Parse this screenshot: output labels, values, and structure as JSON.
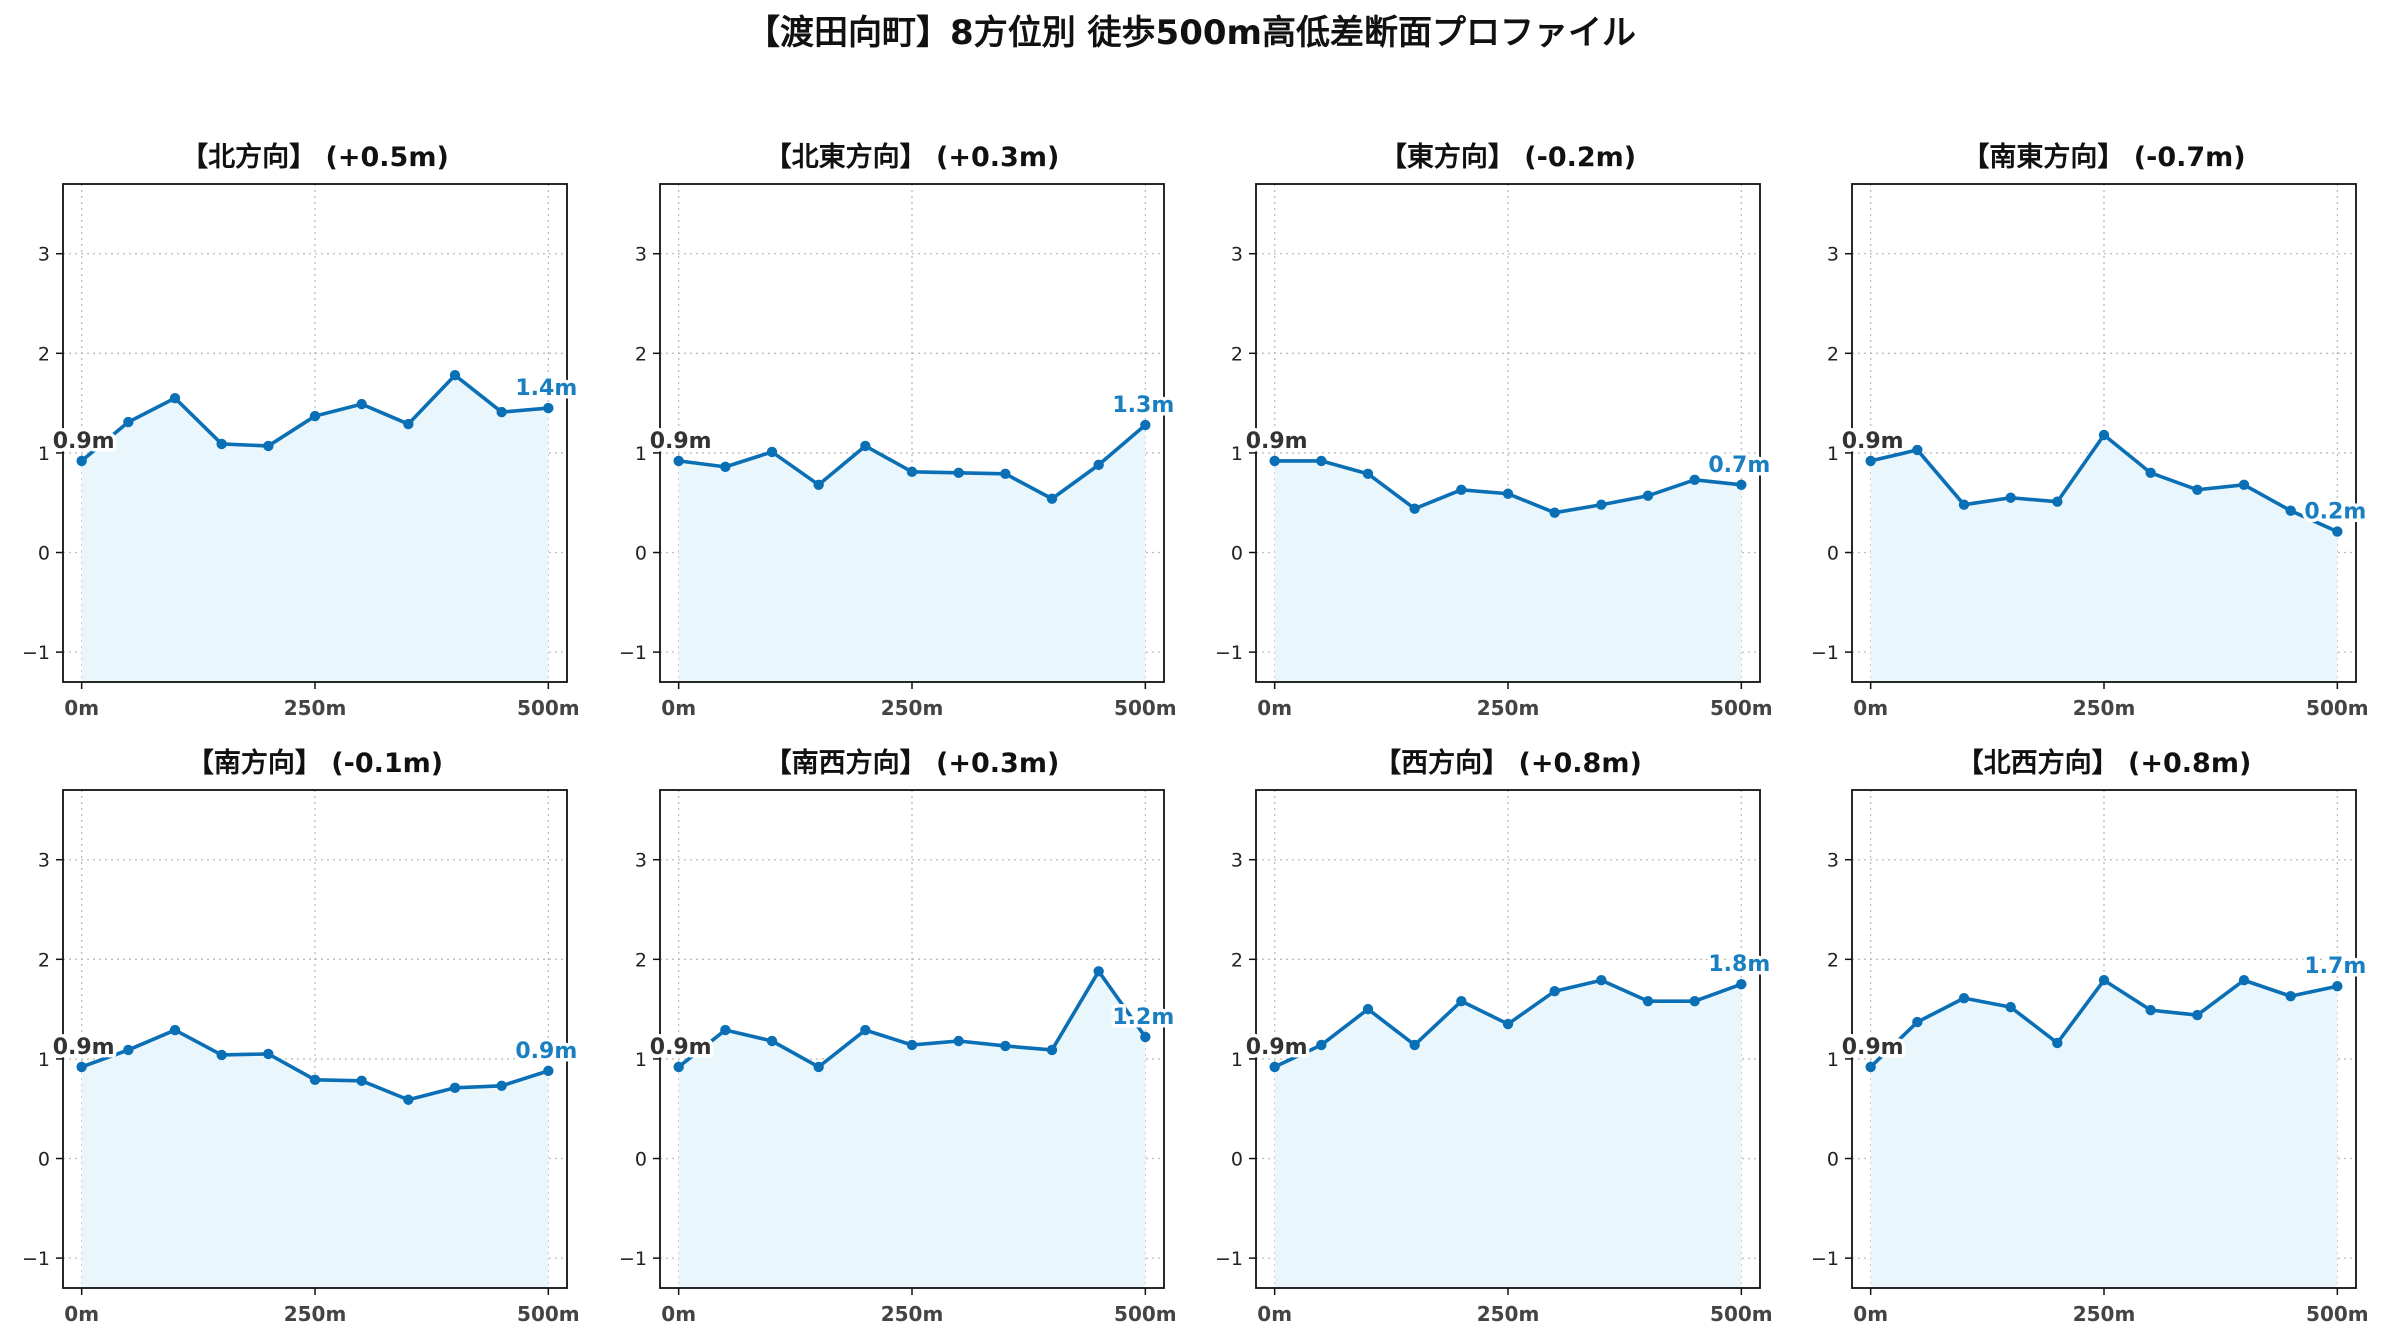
{
  "suptitle": "【渡田向町】8方位別 徒歩500m高低差断面プロファイル",
  "colors": {
    "line": "#0a6fb5",
    "fill": "#e9f6fb",
    "end_label": "#1a7fc0",
    "start_label": "#333333"
  },
  "chart_data": [
    {
      "type": "area",
      "title": "【北方向】 (+0.5m)",
      "x": [
        0,
        50,
        100,
        150,
        200,
        250,
        300,
        350,
        400,
        450,
        500
      ],
      "values": [
        0.92,
        1.31,
        1.55,
        1.09,
        1.07,
        1.37,
        1.49,
        1.29,
        1.78,
        1.41,
        1.45
      ],
      "start_label": "0.9m",
      "end_label": "1.4m",
      "ylim": [
        -1.3,
        3.7
      ],
      "xlim": [
        -20,
        520
      ],
      "yticks": [
        "−1",
        "0",
        "1",
        "2",
        "3"
      ],
      "xticks": [
        "0m",
        "250m",
        "500m"
      ],
      "grid": true
    },
    {
      "type": "area",
      "title": "【北東方向】 (+0.3m)",
      "x": [
        0,
        50,
        100,
        150,
        200,
        250,
        300,
        350,
        400,
        450,
        500
      ],
      "values": [
        0.92,
        0.86,
        1.01,
        0.68,
        1.07,
        0.81,
        0.8,
        0.79,
        0.54,
        0.88,
        1.28
      ],
      "start_label": "0.9m",
      "end_label": "1.3m",
      "ylim": [
        -1.3,
        3.7
      ],
      "xlim": [
        -20,
        520
      ],
      "yticks": [
        "−1",
        "0",
        "1",
        "2",
        "3"
      ],
      "xticks": [
        "0m",
        "250m",
        "500m"
      ],
      "grid": true
    },
    {
      "type": "area",
      "title": "【東方向】 (-0.2m)",
      "x": [
        0,
        50,
        100,
        150,
        200,
        250,
        300,
        350,
        400,
        450,
        500
      ],
      "values": [
        0.92,
        0.92,
        0.79,
        0.44,
        0.63,
        0.59,
        0.4,
        0.48,
        0.57,
        0.73,
        0.68
      ],
      "start_label": "0.9m",
      "end_label": "0.7m",
      "ylim": [
        -1.3,
        3.7
      ],
      "xlim": [
        -20,
        520
      ],
      "yticks": [
        "−1",
        "0",
        "1",
        "2",
        "3"
      ],
      "xticks": [
        "0m",
        "250m",
        "500m"
      ],
      "grid": true
    },
    {
      "type": "area",
      "title": "【南東方向】 (-0.7m)",
      "x": [
        0,
        50,
        100,
        150,
        200,
        250,
        300,
        350,
        400,
        450,
        500
      ],
      "values": [
        0.92,
        1.03,
        0.48,
        0.55,
        0.51,
        1.18,
        0.8,
        0.63,
        0.68,
        0.42,
        0.21
      ],
      "start_label": "0.9m",
      "end_label": "0.2m",
      "ylim": [
        -1.3,
        3.7
      ],
      "xlim": [
        -20,
        520
      ],
      "yticks": [
        "−1",
        "0",
        "1",
        "2",
        "3"
      ],
      "xticks": [
        "0m",
        "250m",
        "500m"
      ],
      "grid": true
    },
    {
      "type": "area",
      "title": "【南方向】 (-0.1m)",
      "x": [
        0,
        50,
        100,
        150,
        200,
        250,
        300,
        350,
        400,
        450,
        500
      ],
      "values": [
        0.92,
        1.09,
        1.29,
        1.04,
        1.05,
        0.79,
        0.78,
        0.59,
        0.71,
        0.73,
        0.88
      ],
      "start_label": "0.9m",
      "end_label": "0.9m",
      "ylim": [
        -1.3,
        3.7
      ],
      "xlim": [
        -20,
        520
      ],
      "yticks": [
        "−1",
        "0",
        "1",
        "2",
        "3"
      ],
      "xticks": [
        "0m",
        "250m",
        "500m"
      ],
      "grid": true
    },
    {
      "type": "area",
      "title": "【南西方向】 (+0.3m)",
      "x": [
        0,
        50,
        100,
        150,
        200,
        250,
        300,
        350,
        400,
        450,
        500
      ],
      "values": [
        0.92,
        1.29,
        1.18,
        0.92,
        1.29,
        1.14,
        1.18,
        1.13,
        1.09,
        1.88,
        1.22
      ],
      "start_label": "0.9m",
      "end_label": "1.2m",
      "ylim": [
        -1.3,
        3.7
      ],
      "xlim": [
        -20,
        520
      ],
      "yticks": [
        "−1",
        "0",
        "1",
        "2",
        "3"
      ],
      "xticks": [
        "0m",
        "250m",
        "500m"
      ],
      "grid": true
    },
    {
      "type": "area",
      "title": "【西方向】 (+0.8m)",
      "x": [
        0,
        50,
        100,
        150,
        200,
        250,
        300,
        350,
        400,
        450,
        500
      ],
      "values": [
        0.92,
        1.14,
        1.5,
        1.14,
        1.58,
        1.35,
        1.68,
        1.79,
        1.58,
        1.58,
        1.75
      ],
      "start_label": "0.9m",
      "end_label": "1.8m",
      "ylim": [
        -1.3,
        3.7
      ],
      "xlim": [
        -20,
        520
      ],
      "yticks": [
        "−1",
        "0",
        "1",
        "2",
        "3"
      ],
      "xticks": [
        "0m",
        "250m",
        "500m"
      ],
      "grid": true
    },
    {
      "type": "area",
      "title": "【北西方向】 (+0.8m)",
      "x": [
        0,
        50,
        100,
        150,
        200,
        250,
        300,
        350,
        400,
        450,
        500
      ],
      "values": [
        0.92,
        1.37,
        1.61,
        1.52,
        1.16,
        1.79,
        1.49,
        1.44,
        1.79,
        1.63,
        1.73
      ],
      "start_label": "0.9m",
      "end_label": "1.7m",
      "ylim": [
        -1.3,
        3.7
      ],
      "xlim": [
        -20,
        520
      ],
      "yticks": [
        "−1",
        "0",
        "1",
        "2",
        "3"
      ],
      "xticks": [
        "0m",
        "250m",
        "500m"
      ],
      "grid": true
    }
  ]
}
